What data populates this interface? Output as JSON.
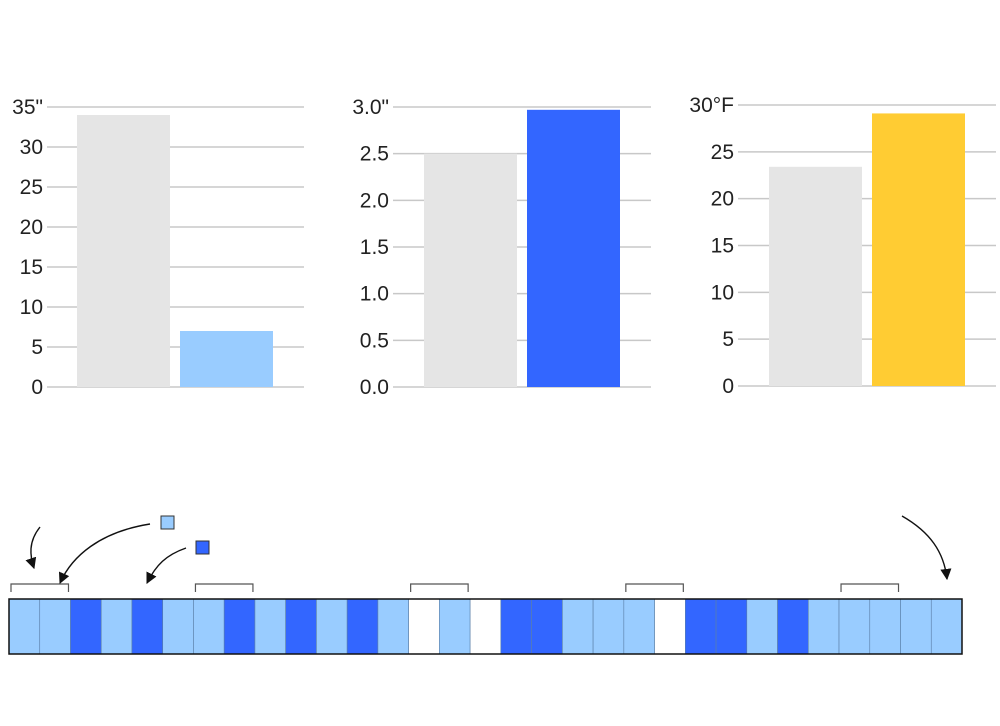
{
  "chart_data": [
    {
      "type": "bar",
      "categories": [
        "",
        ""
      ],
      "values": [
        34,
        7
      ],
      "ylim": [
        0,
        35
      ],
      "tick_labels": [
        "0",
        "5",
        "10",
        "15",
        "20",
        "25",
        "30",
        "35\""
      ],
      "grid": true,
      "colors": [
        "#e5e5e5",
        "#99ccff"
      ]
    },
    {
      "type": "bar",
      "categories": [
        "",
        ""
      ],
      "values": [
        2.5,
        2.97
      ],
      "ylim": [
        0,
        3.0
      ],
      "tick_labels": [
        "0.0",
        "0.5",
        "1.0",
        "1.5",
        "2.0",
        "2.5",
        "3.0\""
      ],
      "grid": true,
      "colors": [
        "#e5e5e5",
        "#3366ff"
      ]
    },
    {
      "type": "bar",
      "categories": [
        "",
        ""
      ],
      "values": [
        23.4,
        29.1
      ],
      "ylim": [
        0,
        30
      ],
      "tick_labels": [
        "0",
        "5",
        "10",
        "15",
        "20",
        "25",
        "30°F"
      ],
      "grid": true,
      "colors": [
        "#e5e5e5",
        "#ffcc33"
      ]
    },
    {
      "type": "heatmap",
      "cells": [
        "L",
        "L",
        "D",
        "L",
        "D",
        "L",
        "L",
        "D",
        "L",
        "D",
        "L",
        "D",
        "L",
        "W",
        "L",
        "W",
        "D",
        "D",
        "L",
        "L",
        "L",
        "W",
        "D",
        "D",
        "L",
        "D",
        "L",
        "L",
        "L",
        "L",
        "L"
      ],
      "legend": [
        {
          "key": "L",
          "color": "#99ccff"
        },
        {
          "key": "D",
          "color": "#3366ff"
        }
      ],
      "empty_color": "#ffffff",
      "brackets": [
        0,
        6,
        13,
        20,
        27
      ]
    }
  ]
}
